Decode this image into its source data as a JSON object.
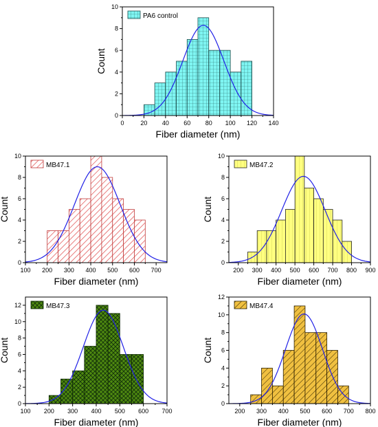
{
  "colors": {
    "curve": "#1f1fe6",
    "axis": "#000000",
    "pa6_fill": "#7ff5f2",
    "mb471_fill": "#ffffff",
    "mb471_hatch": "#e04a4a",
    "mb472_fill": "#ffff80",
    "mb473_fill": "#4f8a10",
    "mb474_fill": "#f0c040"
  },
  "chart_data": [
    {
      "type": "bar",
      "legend": "PA6 control",
      "legend_placement": "top-left",
      "xlabel": "Fiber diameter (nm)",
      "ylabel": "Count",
      "xlim": [
        0,
        140
      ],
      "ylim": [
        0,
        10
      ],
      "x_ticks": [
        "0",
        "20",
        "40",
        "60",
        "80",
        "100",
        "120",
        "140"
      ],
      "y_ticks": [
        "0",
        "2",
        "4",
        "6",
        "8",
        "10"
      ],
      "bin_width": 10,
      "bins": [
        {
          "start": 20,
          "count": 1
        },
        {
          "start": 30,
          "count": 3
        },
        {
          "start": 40,
          "count": 4
        },
        {
          "start": 50,
          "count": 5
        },
        {
          "start": 60,
          "count": 7
        },
        {
          "start": 70,
          "count": 9
        },
        {
          "start": 80,
          "count": 6
        },
        {
          "start": 90,
          "count": 6
        },
        {
          "start": 100,
          "count": 4
        },
        {
          "start": 110,
          "count": 5
        }
      ],
      "fit": {
        "mean": 75,
        "sd": 19,
        "peak": 8.3
      },
      "fill_color": "#7ff5f2",
      "pattern": "grid"
    },
    {
      "type": "bar",
      "legend": "MB47.1",
      "legend_placement": "top-left",
      "xlabel": "Fiber diameter (nm)",
      "ylabel": "Count",
      "xlim": [
        100,
        750
      ],
      "ylim": [
        0,
        10
      ],
      "x_ticks": [
        "100",
        "200",
        "300",
        "400",
        "500",
        "600",
        "700"
      ],
      "y_ticks": [
        "0",
        "2",
        "4",
        "6",
        "8",
        "10"
      ],
      "bin_width": 50,
      "bins": [
        {
          "start": 200,
          "count": 3
        },
        {
          "start": 250,
          "count": 3
        },
        {
          "start": 300,
          "count": 5
        },
        {
          "start": 350,
          "count": 6
        },
        {
          "start": 400,
          "count": 10
        },
        {
          "start": 450,
          "count": 8
        },
        {
          "start": 500,
          "count": 6
        },
        {
          "start": 550,
          "count": 5
        },
        {
          "start": 600,
          "count": 4
        }
      ],
      "fit": {
        "mean": 430,
        "sd": 105,
        "peak": 9
      },
      "fill_color": "#ffffff",
      "pattern": "diagonal-red"
    },
    {
      "type": "bar",
      "legend": "MB47.2",
      "legend_placement": "top-left",
      "xlabel": "Fiber diameter (nm)",
      "ylabel": "Count",
      "xlim": [
        150,
        900
      ],
      "ylim": [
        0,
        10
      ],
      "x_ticks": [
        "200",
        "300",
        "400",
        "500",
        "600",
        "700",
        "800",
        "900"
      ],
      "y_ticks": [
        "0",
        "2",
        "4",
        "6",
        "8",
        "10"
      ],
      "bin_width": 50,
      "bins": [
        {
          "start": 250,
          "count": 1
        },
        {
          "start": 300,
          "count": 3
        },
        {
          "start": 350,
          "count": 3
        },
        {
          "start": 400,
          "count": 4
        },
        {
          "start": 450,
          "count": 5
        },
        {
          "start": 500,
          "count": 10
        },
        {
          "start": 550,
          "count": 7
        },
        {
          "start": 600,
          "count": 6
        },
        {
          "start": 650,
          "count": 5
        },
        {
          "start": 700,
          "count": 4
        },
        {
          "start": 750,
          "count": 2
        }
      ],
      "fit": {
        "mean": 545,
        "sd": 115,
        "peak": 8.1
      },
      "fill_color": "#ffff80",
      "pattern": "vertical"
    },
    {
      "type": "bar",
      "legend": "MB47.3",
      "legend_placement": "top-left",
      "xlabel": "Fiber diameter (nm)",
      "ylabel": "Count",
      "xlim": [
        100,
        700
      ],
      "ylim": [
        0,
        13
      ],
      "x_ticks": [
        "100",
        "200",
        "300",
        "400",
        "500",
        "600",
        "700"
      ],
      "y_ticks": [
        "0",
        "2",
        "4",
        "6",
        "8",
        "10",
        "12"
      ],
      "bin_width": 50,
      "bins": [
        {
          "start": 200,
          "count": 1
        },
        {
          "start": 250,
          "count": 3
        },
        {
          "start": 300,
          "count": 4
        },
        {
          "start": 350,
          "count": 7
        },
        {
          "start": 400,
          "count": 12
        },
        {
          "start": 450,
          "count": 11
        },
        {
          "start": 500,
          "count": 6
        },
        {
          "start": 550,
          "count": 6
        }
      ],
      "fit": {
        "mean": 430,
        "sd": 85,
        "peak": 11.4
      },
      "fill_color": "#4f8a10",
      "pattern": "crosshatch"
    },
    {
      "type": "bar",
      "legend": "MB47.4",
      "legend_placement": "top-left",
      "xlabel": "Fiber diameter (nm)",
      "ylabel": "Count",
      "xlim": [
        150,
        800
      ],
      "ylim": [
        0,
        12
      ],
      "x_ticks": [
        "200",
        "300",
        "400",
        "500",
        "600",
        "700",
        "800"
      ],
      "y_ticks": [
        "0",
        "2",
        "4",
        "6",
        "8",
        "10",
        "12"
      ],
      "bin_width": 50,
      "bins": [
        {
          "start": 250,
          "count": 1
        },
        {
          "start": 300,
          "count": 4
        },
        {
          "start": 350,
          "count": 2
        },
        {
          "start": 400,
          "count": 6
        },
        {
          "start": 450,
          "count": 11
        },
        {
          "start": 500,
          "count": 8
        },
        {
          "start": 550,
          "count": 8
        },
        {
          "start": 600,
          "count": 6
        },
        {
          "start": 650,
          "count": 2
        }
      ],
      "fit": {
        "mean": 495,
        "sd": 85,
        "peak": 10.1
      },
      "fill_color": "#f0c040",
      "pattern": "diagonal-dark"
    }
  ]
}
